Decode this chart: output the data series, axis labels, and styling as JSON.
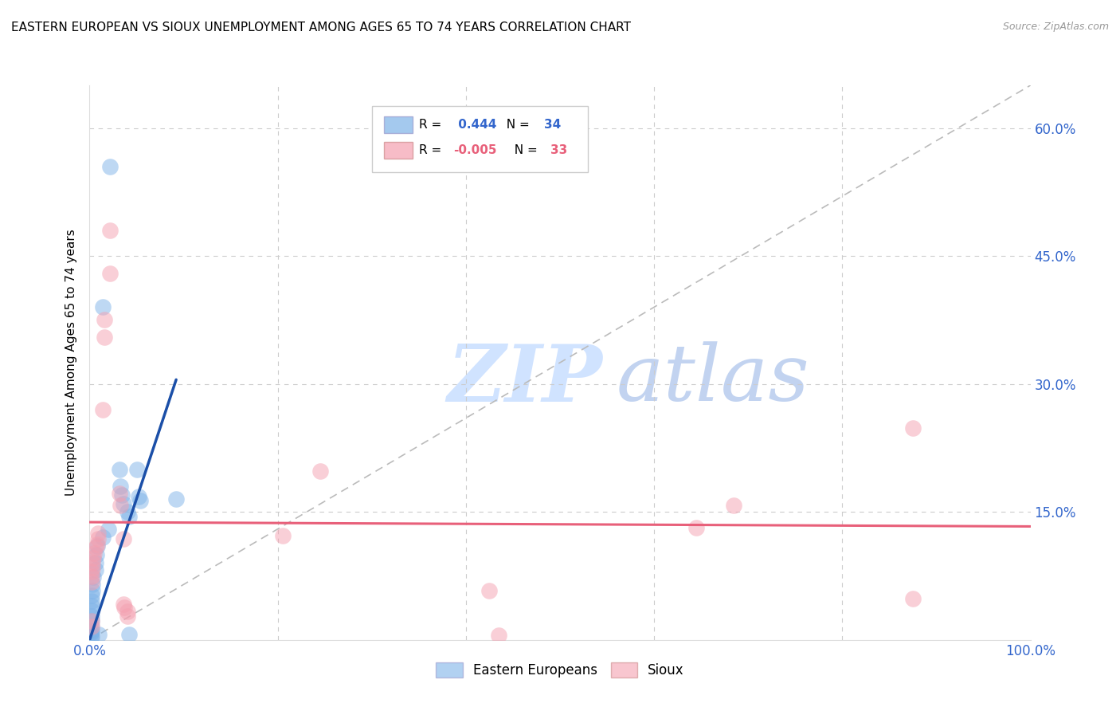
{
  "title": "EASTERN EUROPEAN VS SIOUX UNEMPLOYMENT AMONG AGES 65 TO 74 YEARS CORRELATION CHART",
  "source": "Source: ZipAtlas.com",
  "ylabel": "Unemployment Among Ages 65 to 74 years",
  "xlim": [
    0,
    1.0
  ],
  "ylim": [
    0,
    0.65
  ],
  "xtick_positions": [
    0.0,
    0.2,
    0.4,
    0.6,
    0.8,
    1.0
  ],
  "xticklabels": [
    "0.0%",
    "",
    "",
    "",
    "",
    "100.0%"
  ],
  "ytick_positions": [
    0.0,
    0.15,
    0.3,
    0.45,
    0.6
  ],
  "right_yticklabels": [
    "",
    "15.0%",
    "30.0%",
    "45.0%",
    "60.0%"
  ],
  "legend_blue_r": "0.444",
  "legend_blue_n": "34",
  "legend_pink_r": "-0.005",
  "legend_pink_n": "33",
  "blue_color": "#7EB3E8",
  "pink_color": "#F4A0B0",
  "blue_line_color": "#1B4FA8",
  "pink_line_color": "#E8607A",
  "dashed_line_color": "#BBBBBB",
  "blue_points": [
    [
      0.022,
      0.555
    ],
    [
      0.014,
      0.39
    ],
    [
      0.02,
      0.13
    ],
    [
      0.014,
      0.12
    ],
    [
      0.008,
      0.11
    ],
    [
      0.007,
      0.1
    ],
    [
      0.006,
      0.09
    ],
    [
      0.006,
      0.082
    ],
    [
      0.004,
      0.074
    ],
    [
      0.003,
      0.065
    ],
    [
      0.003,
      0.058
    ],
    [
      0.002,
      0.052
    ],
    [
      0.002,
      0.046
    ],
    [
      0.002,
      0.04
    ],
    [
      0.002,
      0.034
    ],
    [
      0.002,
      0.028
    ],
    [
      0.002,
      0.022
    ],
    [
      0.002,
      0.016
    ],
    [
      0.002,
      0.01
    ],
    [
      0.002,
      0.004
    ],
    [
      0.001,
      0.008
    ],
    [
      0.001,
      0.004
    ],
    [
      0.032,
      0.2
    ],
    [
      0.033,
      0.18
    ],
    [
      0.034,
      0.17
    ],
    [
      0.036,
      0.16
    ],
    [
      0.04,
      0.15
    ],
    [
      0.042,
      0.145
    ],
    [
      0.05,
      0.2
    ],
    [
      0.052,
      0.168
    ],
    [
      0.054,
      0.163
    ],
    [
      0.092,
      0.165
    ],
    [
      0.042,
      0.006
    ],
    [
      0.01,
      0.006
    ]
  ],
  "pink_points": [
    [
      0.022,
      0.48
    ],
    [
      0.022,
      0.43
    ],
    [
      0.016,
      0.355
    ],
    [
      0.014,
      0.27
    ],
    [
      0.009,
      0.125
    ],
    [
      0.009,
      0.118
    ],
    [
      0.008,
      0.112
    ],
    [
      0.006,
      0.108
    ],
    [
      0.005,
      0.102
    ],
    [
      0.004,
      0.096
    ],
    [
      0.003,
      0.09
    ],
    [
      0.003,
      0.085
    ],
    [
      0.002,
      0.08
    ],
    [
      0.002,
      0.075
    ],
    [
      0.002,
      0.068
    ],
    [
      0.002,
      0.022
    ],
    [
      0.002,
      0.016
    ],
    [
      0.032,
      0.172
    ],
    [
      0.033,
      0.158
    ],
    [
      0.036,
      0.118
    ],
    [
      0.036,
      0.042
    ],
    [
      0.037,
      0.038
    ],
    [
      0.04,
      0.033
    ],
    [
      0.04,
      0.028
    ],
    [
      0.205,
      0.122
    ],
    [
      0.245,
      0.198
    ],
    [
      0.425,
      0.058
    ],
    [
      0.435,
      0.005
    ],
    [
      0.645,
      0.132
    ],
    [
      0.685,
      0.158
    ],
    [
      0.875,
      0.248
    ],
    [
      0.875,
      0.048
    ],
    [
      0.016,
      0.375
    ]
  ],
  "blue_line_x": [
    0.0,
    0.092
  ],
  "blue_line_y": [
    0.0,
    0.305
  ],
  "pink_line_x": [
    0.0,
    1.0
  ],
  "pink_line_y": [
    0.138,
    0.133
  ],
  "diag_line_x": [
    0.0,
    1.0
  ],
  "diag_line_y": [
    0.0,
    0.65
  ]
}
